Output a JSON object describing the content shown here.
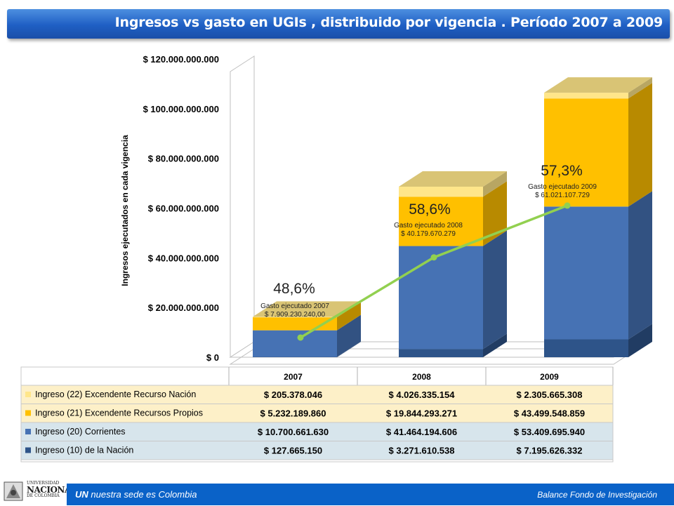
{
  "header": {
    "title": "Ingresos vs gasto en UGIs , distribuido por vigencia . Período 2007 a 2009"
  },
  "footer": {
    "brand": "UN",
    "tagline": "nuestra sede es Colombia",
    "right_text": "Balance Fondo de Investigación",
    "logo_top": "UNIVERSIDAD",
    "logo_main": "NACIONAL",
    "logo_bottom": "DE COLOMBIA"
  },
  "chart_data": {
    "type": "bar",
    "stacked": true,
    "three_d": true,
    "categories": [
      "2007",
      "2008",
      "2009"
    ],
    "ylabel": "Ingresos ejecutados en cada vigencia",
    "ylim": [
      0,
      120000000000
    ],
    "yticks": [
      0,
      20000000000,
      40000000000,
      60000000000,
      80000000000,
      100000000000,
      120000000000
    ],
    "ytick_labels": [
      "$ 0",
      "$ 20.000.000.000",
      "$ 40.000.000.000",
      "$ 60.000.000.000",
      "$ 80.000.000.000",
      "$ 100.000.000.000",
      "$ 120.000.000.000"
    ],
    "series": [
      {
        "name": "Ingreso (10) de la  Nación",
        "color": "#2e5489",
        "values": [
          127665150,
          3271610538,
          7195626332
        ],
        "labels": [
          "$ 127.665.150",
          "$ 3.271.610.538",
          "$ 7.195.626.332"
        ]
      },
      {
        "name": "Ingreso (20) Corrientes",
        "color": "#4672b4",
        "values": [
          10700661630,
          41464194606,
          53409695940
        ],
        "labels": [
          "$ 10.700.661.630",
          "$ 41.464.194.606",
          "$ 53.409.695.940"
        ]
      },
      {
        "name": "Ingreso (21) Excendente Recursos Propios",
        "color": "#ffc000",
        "values": [
          5232189860,
          19844293271,
          43499548859
        ],
        "labels": [
          "$ 5.232.189.860",
          "$ 19.844.293.271",
          "$ 43.499.548.859"
        ]
      },
      {
        "name": "Ingreso (22) Excendente Recurso Nación",
        "color": "#ffe68a",
        "values": [
          205378046,
          4026335154,
          2305665308
        ],
        "labels": [
          "$ 205.378.046",
          "$ 4.026.335.154",
          "$ 2.305.665.308"
        ]
      }
    ],
    "line_series": {
      "name": "Gasto ejecutado",
      "color": "#92d050",
      "values": [
        7909230240,
        40179670279,
        61021107729
      ],
      "percent_labels": [
        "48,6%",
        "58,6%",
        "57,3%"
      ],
      "caption_titles": [
        "Gasto ejecutado 2007",
        "Gasto ejecutado 2008",
        "Gasto ejecutado 2009"
      ],
      "caption_values": [
        "$ 7.909.230.240,00",
        "$ 40.179.670.279",
        "$ 61.021.107.729"
      ]
    },
    "table_row_order": [
      3,
      2,
      1,
      0
    ],
    "grid": false,
    "legend": "table-below"
  }
}
